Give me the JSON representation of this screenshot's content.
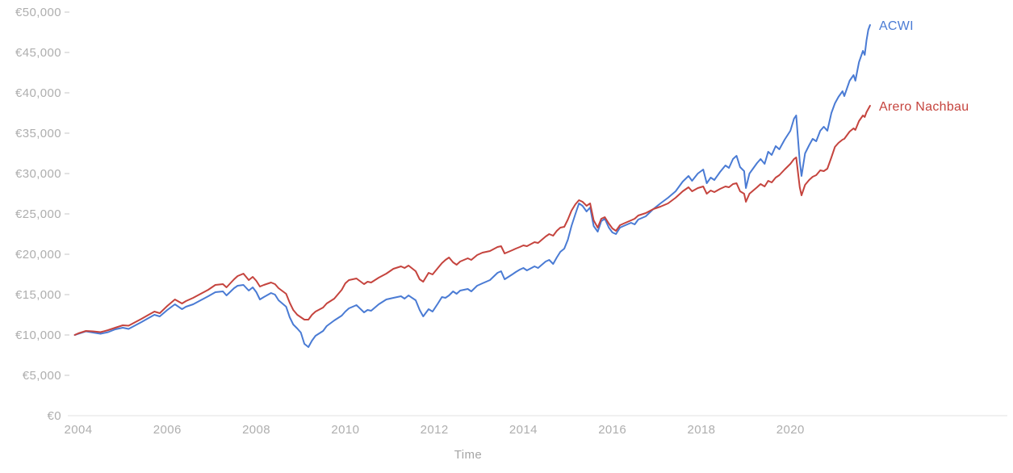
{
  "chart_data": {
    "type": "line",
    "title": "",
    "xlabel": "Time",
    "ylabel": "",
    "currency": "EUR",
    "grid": false,
    "legend_position": "end-of-line-labels",
    "xlim": [
      2003.9,
      2021.95
    ],
    "ylim": [
      0,
      50000
    ],
    "axis_text_color": "#aeaeae",
    "axis_line_color": "#e8e8e8",
    "tick_mark_color": "#d9d9d9",
    "y_tick_values": [
      0,
      5000,
      10000,
      15000,
      20000,
      25000,
      30000,
      35000,
      40000,
      45000,
      50000
    ],
    "y_tick_labels": [
      "€0",
      "€5,000",
      "€10,000",
      "€15,000",
      "€20,000",
      "€25,000",
      "€30,000",
      "€35,000",
      "€40,000",
      "€45,000",
      "€50,000"
    ],
    "x_tick_values": [
      2004,
      2006,
      2008,
      2010,
      2012,
      2014,
      2016,
      2018,
      2020
    ],
    "x_tick_labels": [
      "2004",
      "2006",
      "2008",
      "2010",
      "2012",
      "2014",
      "2016",
      "2018",
      "2020"
    ],
    "x": [
      2003.92,
      2004.0,
      2004.17,
      2004.33,
      2004.5,
      2004.67,
      2004.83,
      2005.0,
      2005.13,
      2005.25,
      2005.42,
      2005.58,
      2005.71,
      2005.83,
      2006.0,
      2006.17,
      2006.33,
      2006.42,
      2006.58,
      2006.75,
      2006.92,
      2007.08,
      2007.25,
      2007.33,
      2007.5,
      2007.58,
      2007.71,
      2007.83,
      2007.92,
      2008.0,
      2008.08,
      2008.17,
      2008.33,
      2008.42,
      2008.5,
      2008.67,
      2008.75,
      2008.83,
      2008.92,
      2009.0,
      2009.08,
      2009.17,
      2009.25,
      2009.33,
      2009.5,
      2009.58,
      2009.75,
      2009.92,
      2010.0,
      2010.08,
      2010.25,
      2010.42,
      2010.5,
      2010.58,
      2010.75,
      2010.92,
      2011.08,
      2011.25,
      2011.33,
      2011.42,
      2011.58,
      2011.67,
      2011.75,
      2011.87,
      2011.96,
      2012.08,
      2012.17,
      2012.25,
      2012.33,
      2012.42,
      2012.5,
      2012.58,
      2012.75,
      2012.83,
      2012.96,
      2013.08,
      2013.25,
      2013.42,
      2013.5,
      2013.58,
      2013.75,
      2013.83,
      2013.92,
      2014.0,
      2014.08,
      2014.25,
      2014.33,
      2014.5,
      2014.58,
      2014.67,
      2014.75,
      2014.83,
      2014.92,
      2015.0,
      2015.08,
      2015.17,
      2015.25,
      2015.33,
      2015.42,
      2015.5,
      2015.58,
      2015.67,
      2015.75,
      2015.83,
      2015.92,
      2016.0,
      2016.08,
      2016.17,
      2016.25,
      2016.42,
      2016.5,
      2016.58,
      2016.75,
      2016.92,
      2017.08,
      2017.25,
      2017.42,
      2017.58,
      2017.71,
      2017.79,
      2017.92,
      2018.04,
      2018.12,
      2018.21,
      2018.29,
      2018.42,
      2018.54,
      2018.62,
      2018.71,
      2018.79,
      2018.87,
      2018.96,
      2019.0,
      2019.08,
      2019.25,
      2019.33,
      2019.42,
      2019.5,
      2019.58,
      2019.67,
      2019.75,
      2019.87,
      2020.0,
      2020.08,
      2020.13,
      2020.21,
      2020.25,
      2020.33,
      2020.42,
      2020.5,
      2020.58,
      2020.67,
      2020.75,
      2020.83,
      2020.92,
      2021.0,
      2021.08,
      2021.17,
      2021.21,
      2021.33,
      2021.42,
      2021.46,
      2021.54,
      2021.63,
      2021.67,
      2021.71,
      2021.75,
      2021.79
    ],
    "series": [
      {
        "name": "ACWI",
        "color": "#4a7bd4",
        "values": [
          10000,
          10150,
          10450,
          10300,
          10150,
          10350,
          10700,
          10900,
          10750,
          11100,
          11600,
          12100,
          12500,
          12300,
          13100,
          13800,
          13200,
          13500,
          13800,
          14300,
          14800,
          15300,
          15400,
          14900,
          15800,
          16100,
          16200,
          15500,
          15900,
          15300,
          14400,
          14700,
          15200,
          15000,
          14300,
          13500,
          12200,
          11300,
          10800,
          10300,
          8900,
          8500,
          9300,
          9900,
          10500,
          11100,
          11800,
          12400,
          12900,
          13300,
          13700,
          12800,
          13100,
          13000,
          13800,
          14400,
          14600,
          14800,
          14500,
          14900,
          14300,
          13100,
          12300,
          13200,
          12900,
          13900,
          14700,
          14600,
          14900,
          15400,
          15100,
          15500,
          15700,
          15400,
          16100,
          16400,
          16800,
          17700,
          17900,
          16900,
          17500,
          17800,
          18100,
          18300,
          18000,
          18500,
          18300,
          19100,
          19300,
          18800,
          19600,
          20300,
          20700,
          21800,
          23500,
          25000,
          26300,
          26000,
          25300,
          25800,
          23500,
          22800,
          24100,
          24400,
          23300,
          22700,
          22500,
          23300,
          23500,
          23900,
          23700,
          24300,
          24700,
          25600,
          26300,
          27000,
          27800,
          29000,
          29700,
          29100,
          30000,
          30500,
          28800,
          29500,
          29200,
          30200,
          31000,
          30700,
          31800,
          32200,
          30800,
          30300,
          28200,
          30000,
          31300,
          31800,
          31200,
          32700,
          32300,
          33400,
          33000,
          34200,
          35300,
          36800,
          37200,
          31500,
          29700,
          32500,
          33500,
          34300,
          34000,
          35300,
          35800,
          35300,
          37500,
          38700,
          39500,
          40200,
          39600,
          41500,
          42200,
          41500,
          43800,
          45200,
          44700,
          46500,
          47800,
          48400
        ]
      },
      {
        "name": "Arero Nachbau",
        "color": "#c5443e",
        "values": [
          10000,
          10200,
          10500,
          10450,
          10350,
          10600,
          10900,
          11200,
          11150,
          11500,
          12000,
          12500,
          12900,
          12700,
          13600,
          14400,
          13900,
          14200,
          14600,
          15100,
          15600,
          16200,
          16300,
          15900,
          16900,
          17300,
          17600,
          16800,
          17200,
          16700,
          16000,
          16200,
          16500,
          16300,
          15800,
          15100,
          14000,
          13100,
          12500,
          12200,
          11900,
          11900,
          12500,
          12900,
          13400,
          13900,
          14500,
          15600,
          16400,
          16800,
          17000,
          16300,
          16600,
          16500,
          17100,
          17600,
          18200,
          18500,
          18300,
          18600,
          17900,
          16900,
          16600,
          17700,
          17500,
          18300,
          18900,
          19300,
          19600,
          19000,
          18700,
          19100,
          19500,
          19300,
          19900,
          20200,
          20400,
          20900,
          21000,
          20100,
          20500,
          20700,
          20900,
          21100,
          21000,
          21500,
          21400,
          22200,
          22500,
          22300,
          22900,
          23300,
          23400,
          24300,
          25400,
          26200,
          26700,
          26500,
          26000,
          26300,
          24200,
          23300,
          24400,
          24600,
          23800,
          23200,
          22900,
          23600,
          23800,
          24200,
          24400,
          24800,
          25100,
          25600,
          25900,
          26300,
          27000,
          27800,
          28300,
          27800,
          28200,
          28400,
          27500,
          27900,
          27700,
          28100,
          28400,
          28300,
          28700,
          28800,
          27800,
          27500,
          26500,
          27500,
          28300,
          28700,
          28400,
          29100,
          28900,
          29500,
          29800,
          30500,
          31200,
          31800,
          32000,
          28300,
          27300,
          28600,
          29200,
          29600,
          29800,
          30400,
          30300,
          30600,
          32000,
          33300,
          33800,
          34200,
          34300,
          35200,
          35600,
          35400,
          36500,
          37200,
          37000,
          37600,
          38000,
          38400
        ]
      }
    ]
  }
}
